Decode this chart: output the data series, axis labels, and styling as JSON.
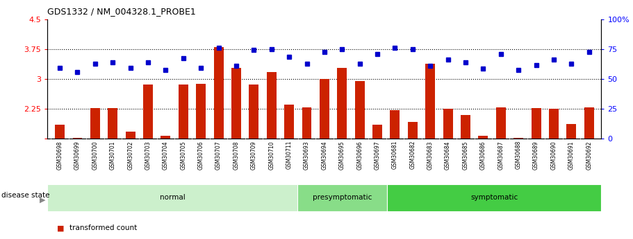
{
  "title": "GDS1332 / NM_004328.1_PROBE1",
  "samples": [
    "GSM30698",
    "GSM30699",
    "GSM30700",
    "GSM30701",
    "GSM30702",
    "GSM30703",
    "GSM30704",
    "GSM30705",
    "GSM30706",
    "GSM30707",
    "GSM30708",
    "GSM30709",
    "GSM30710",
    "GSM30711",
    "GSM30693",
    "GSM30694",
    "GSM30695",
    "GSM30696",
    "GSM30697",
    "GSM30681",
    "GSM30682",
    "GSM30683",
    "GSM30684",
    "GSM30685",
    "GSM30686",
    "GSM30687",
    "GSM30688",
    "GSM30689",
    "GSM30690",
    "GSM30691",
    "GSM30692"
  ],
  "bar_values": [
    1.85,
    1.52,
    2.27,
    2.27,
    1.68,
    2.85,
    1.57,
    2.85,
    2.88,
    3.8,
    3.27,
    2.86,
    3.17,
    2.35,
    2.28,
    3.0,
    3.27,
    2.95,
    1.85,
    2.22,
    1.92,
    3.38,
    2.25,
    2.1,
    1.57,
    2.28,
    1.52,
    2.27,
    2.25,
    1.87,
    2.28
  ],
  "percentile_values_left_scale": [
    3.28,
    3.18,
    3.38,
    3.42,
    3.28,
    3.42,
    3.22,
    3.52,
    3.28,
    3.78,
    3.33,
    3.72,
    3.75,
    3.55,
    3.38,
    3.68,
    3.75,
    3.38,
    3.62,
    3.78,
    3.75,
    3.33,
    3.48,
    3.42,
    3.25,
    3.62,
    3.22,
    3.35,
    3.48,
    3.38,
    3.68
  ],
  "disease_groups": [
    {
      "label": "normal",
      "start": 0,
      "end": 13,
      "color": "#ccf0cc"
    },
    {
      "label": "presymptomatic",
      "start": 14,
      "end": 18,
      "color": "#88dd88"
    },
    {
      "label": "symptomatic",
      "start": 19,
      "end": 30,
      "color": "#44cc44"
    }
  ],
  "bar_color": "#cc2200",
  "dot_color": "#0000cc",
  "bar_bottom": 1.5,
  "ylim_left": [
    1.5,
    4.5
  ],
  "ylim_right": [
    0,
    100
  ],
  "yticks_left": [
    1.5,
    2.25,
    3.0,
    3.75,
    4.5
  ],
  "ytick_labels_left": [
    "",
    "2.25",
    "3",
    "3.75",
    "4.5"
  ],
  "yticks_right": [
    0,
    25,
    50,
    75,
    100
  ],
  "ytick_labels_right": [
    "0",
    "25",
    "50",
    "75",
    "100%"
  ],
  "hlines": [
    2.25,
    3.0,
    3.75
  ],
  "header_color": "#c0c0c0",
  "bg_color": "#ffffff"
}
